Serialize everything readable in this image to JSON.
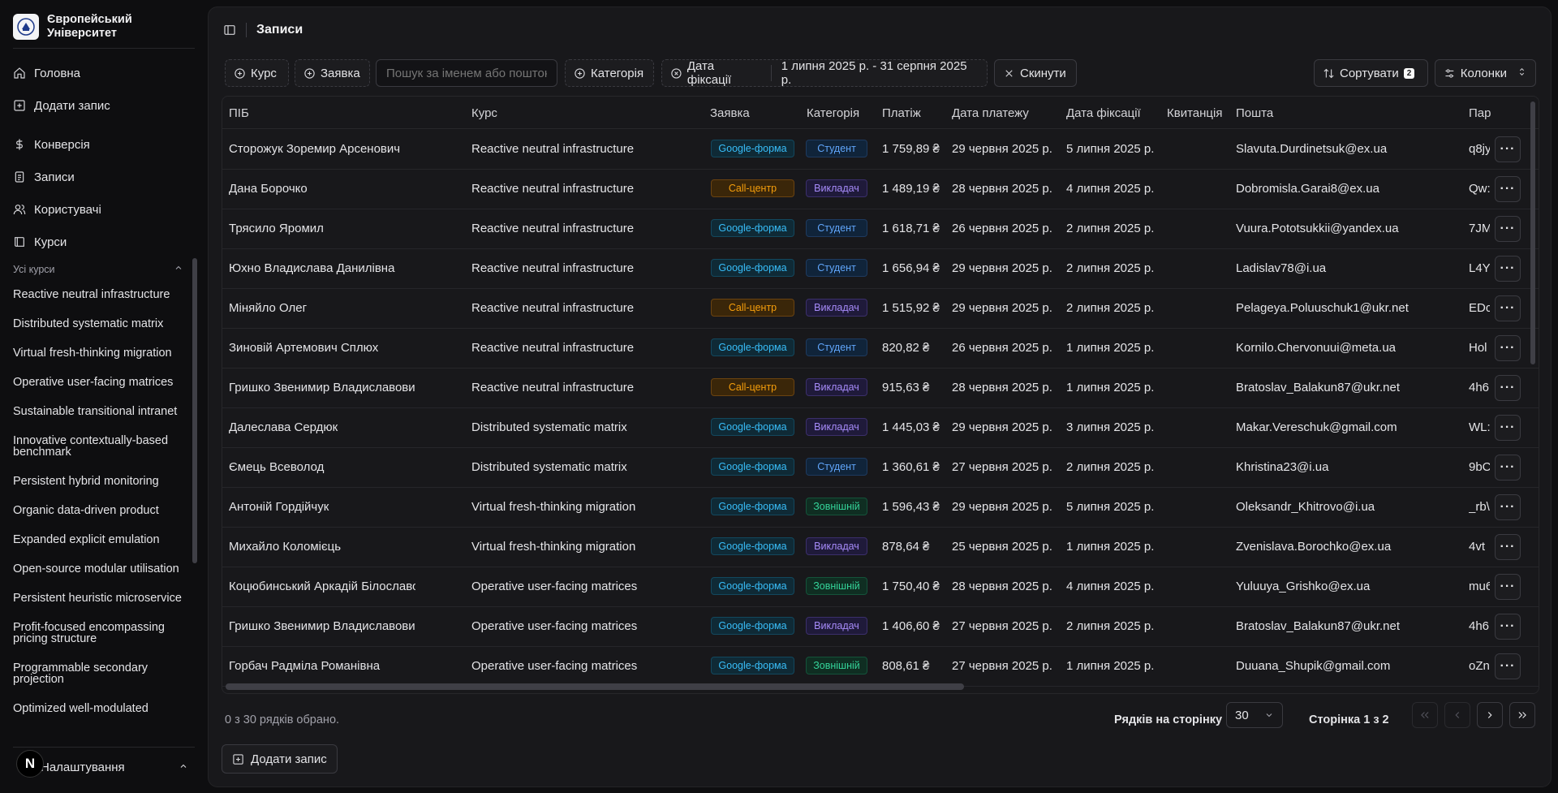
{
  "brand": {
    "line1": "Європейський",
    "line2": "Університет"
  },
  "nav": [
    {
      "label": "Головна",
      "icon": "home-icon"
    },
    {
      "label": "Додати запис",
      "icon": "plus-square-icon"
    },
    {
      "label": "Конверсія",
      "icon": "dollar-icon"
    },
    {
      "label": "Записи",
      "icon": "clipboard-icon"
    },
    {
      "label": "Користувачі",
      "icon": "users-icon"
    },
    {
      "label": "Курси",
      "icon": "book-icon"
    }
  ],
  "courses_section": {
    "title": "Усі курси"
  },
  "courses": [
    "Reactive neutral infrastructure",
    "Distributed systematic matrix",
    "Virtual fresh-thinking migration",
    "Operative user-facing matrices",
    "Sustainable transitional intranet",
    "Innovative contextually-based benchmark",
    "Persistent hybrid monitoring",
    "Organic data-driven product",
    "Expanded explicit emulation",
    "Open-source modular utilisation",
    "Persistent heuristic microservice",
    "Profit-focused encompassing pricing structure",
    "Programmable secondary projection",
    "Optimized well-modulated"
  ],
  "settings": {
    "label": "Налаштування",
    "badge": "N"
  },
  "header": {
    "title": "Записи"
  },
  "toolbar": {
    "course": "Курс",
    "request": "Заявка",
    "search_placeholder": "Пошук за іменем або поштою",
    "category": "Категорія",
    "date_filter": "Дата фіксації",
    "date_range": "1 липня 2025 р. - 31 серпня 2025 р.",
    "reset": "Скинути",
    "sort": "Сортувати",
    "sort_count": "2",
    "columns": "Колонки"
  },
  "columns": [
    "ПІБ",
    "Курс",
    "Заявка",
    "Категорія",
    "Платіж",
    "Дата платежу",
    "Дата фіксації",
    "Квитанція",
    "Пошта",
    "Пар"
  ],
  "rows": [
    {
      "name": "Сторожук Зоремир Арсенович",
      "course": "Reactive neutral infrastructure",
      "request": "Google-форма",
      "category": "Студент",
      "payment": "1 759,89 ₴",
      "pay_date": "29 червня 2025 р.",
      "fix_date": "5 липня 2025 р.",
      "email": "Slavuta.Durdinetsuk@ex.ua",
      "par": "q8jy"
    },
    {
      "name": "Дана Борочко",
      "course": "Reactive neutral infrastructure",
      "request": "Call-центр",
      "category": "Викладач",
      "payment": "1 489,19 ₴",
      "pay_date": "28 червня 2025 р.",
      "fix_date": "4 липня 2025 р.",
      "email": "Dobromisla.Garai8@ex.ua",
      "par": "Qw:"
    },
    {
      "name": "Трясило Яромил",
      "course": "Reactive neutral infrastructure",
      "request": "Google-форма",
      "category": "Студент",
      "payment": "1 618,71 ₴",
      "pay_date": "26 червня 2025 р.",
      "fix_date": "2 липня 2025 р.",
      "email": "Vuura.Pototsukkii@yandex.ua",
      "par": "7JM"
    },
    {
      "name": "Юхно Владислава Данилівна",
      "course": "Reactive neutral infrastructure",
      "request": "Google-форма",
      "category": "Студент",
      "payment": "1 656,94 ₴",
      "pay_date": "29 червня 2025 р.",
      "fix_date": "2 липня 2025 р.",
      "email": "Ladislav78@i.ua",
      "par": "L4Y"
    },
    {
      "name": "Міняйло Олег",
      "course": "Reactive neutral infrastructure",
      "request": "Call-центр",
      "category": "Викладач",
      "payment": "1 515,92 ₴",
      "pay_date": "29 червня 2025 р.",
      "fix_date": "2 липня 2025 р.",
      "email": "Pelageya.Poluuschuk1@ukr.net",
      "par": "EDc"
    },
    {
      "name": "Зиновій Артемович Сплюх",
      "course": "Reactive neutral infrastructure",
      "request": "Google-форма",
      "category": "Студент",
      "payment": "820,82 ₴",
      "pay_date": "26 червня 2025 р.",
      "fix_date": "1 липня 2025 р.",
      "email": "Kornilo.Chervonuui@meta.ua",
      "par": "Hol"
    },
    {
      "name": "Гришко Звенимир Владиславович",
      "course": "Reactive neutral infrastructure",
      "request": "Call-центр",
      "category": "Викладач",
      "payment": "915,63 ₴",
      "pay_date": "28 червня 2025 р.",
      "fix_date": "1 липня 2025 р.",
      "email": "Bratoslav_Balakun87@ukr.net",
      "par": "4h6"
    },
    {
      "name": "Далеслава Сердюк",
      "course": "Distributed systematic matrix",
      "request": "Google-форма",
      "category": "Викладач",
      "payment": "1 445,03 ₴",
      "pay_date": "29 червня 2025 р.",
      "fix_date": "3 липня 2025 р.",
      "email": "Makar.Vereschuk@gmail.com",
      "par": "WL:"
    },
    {
      "name": "Ємець Всеволод",
      "course": "Distributed systematic matrix",
      "request": "Google-форма",
      "category": "Студент",
      "payment": "1 360,61 ₴",
      "pay_date": "27 червня 2025 р.",
      "fix_date": "2 липня 2025 р.",
      "email": "Khristina23@i.ua",
      "par": "9bC"
    },
    {
      "name": "Антоній Гордійчук",
      "course": "Virtual fresh-thinking migration",
      "request": "Google-форма",
      "category": "Зовнішній",
      "payment": "1 596,43 ₴",
      "pay_date": "29 червня 2025 р.",
      "fix_date": "5 липня 2025 р.",
      "email": "Oleksandr_Khitrovo@i.ua",
      "par": "_rb\\"
    },
    {
      "name": "Михайло Коломієць",
      "course": "Virtual fresh-thinking migration",
      "request": "Google-форма",
      "category": "Викладач",
      "payment": "878,64 ₴",
      "pay_date": "25 червня 2025 р.",
      "fix_date": "1 липня 2025 р.",
      "email": "Zvenislava.Borochko@ex.ua",
      "par": "4vt"
    },
    {
      "name": "Коцюбинський Аркадій Білославович",
      "course": "Operative user-facing matrices",
      "request": "Google-форма",
      "category": "Зовнішній",
      "payment": "1 750,40 ₴",
      "pay_date": "28 червня 2025 р.",
      "fix_date": "4 липня 2025 р.",
      "email": "Yuluuya_Grishko@ex.ua",
      "par": "mu6"
    },
    {
      "name": "Гришко Звенимир Владиславович",
      "course": "Operative user-facing matrices",
      "request": "Google-форма",
      "category": "Викладач",
      "payment": "1 406,60 ₴",
      "pay_date": "27 червня 2025 р.",
      "fix_date": "2 липня 2025 р.",
      "email": "Bratoslav_Balakun87@ukr.net",
      "par": "4h6"
    },
    {
      "name": "Горбач Радміла Романівна",
      "course": "Operative user-facing matrices",
      "request": "Google-форма",
      "category": "Зовнішній",
      "payment": "808,61 ₴",
      "pay_date": "27 червня 2025 р.",
      "fix_date": "1 липня 2025 р.",
      "email": "Duuana_Shupik@gmail.com",
      "par": "oZn"
    }
  ],
  "row_actions_label": "···",
  "footer": {
    "selected": "0 з 30 рядків обрано.",
    "rows_per_page_label": "Рядків на сторінку",
    "rows_per_page": "30",
    "page_label": "Сторінка 1 з 2",
    "add_record": "Додати запис"
  },
  "colors": {
    "google": "#38bdf8",
    "call_center": "#f59e0b",
    "student": "#60a5fa",
    "teacher": "#a78bfa",
    "external": "#34d399"
  }
}
